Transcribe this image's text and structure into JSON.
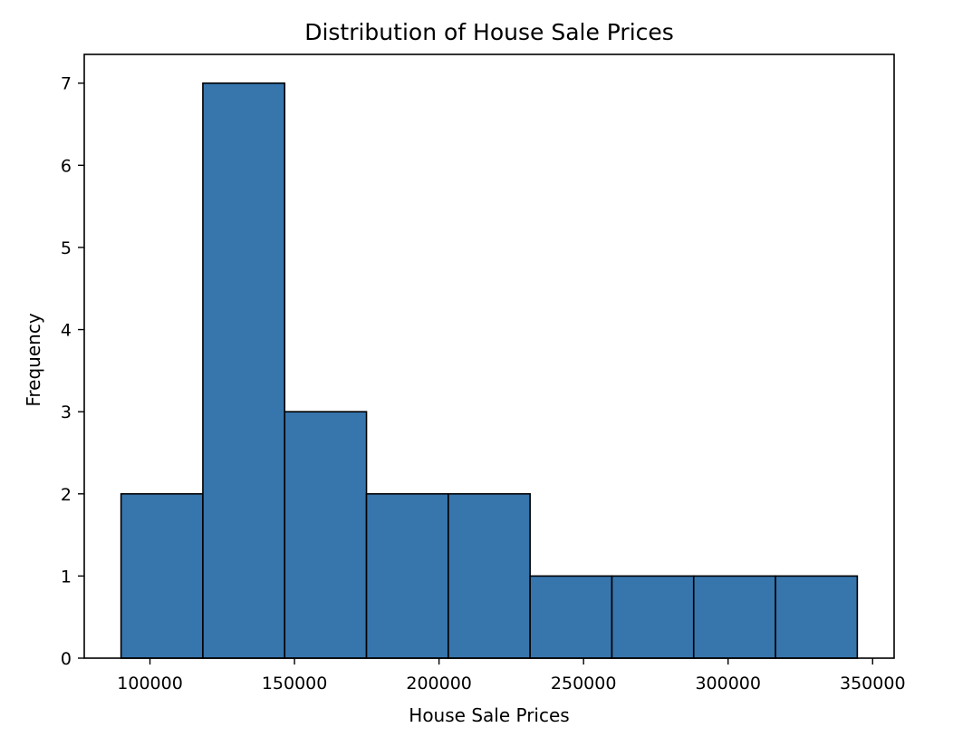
{
  "chart_data": {
    "type": "histogram",
    "title": "Distribution of House Sale Prices",
    "xlabel": "House Sale Prices",
    "ylabel": "Frequency",
    "bin_edges": [
      90000,
      118300,
      146600,
      174900,
      203200,
      231500,
      259800,
      288100,
      316400,
      344700
    ],
    "values": [
      2,
      7,
      3,
      2,
      2,
      1,
      1,
      1,
      1
    ],
    "xlim": [
      77265,
      357435
    ],
    "ylim": [
      0,
      7.35
    ],
    "xticks": [
      100000,
      150000,
      200000,
      250000,
      300000,
      350000
    ],
    "xtick_labels": [
      "100000",
      "150000",
      "200000",
      "250000",
      "300000",
      "350000"
    ],
    "yticks": [
      0,
      1,
      2,
      3,
      4,
      5,
      6,
      7
    ],
    "ytick_labels": [
      "0",
      "1",
      "2",
      "3",
      "4",
      "5",
      "6",
      "7"
    ],
    "bar_color": "#3775ad",
    "edge_color": "#000000",
    "grid": false,
    "legend": "none"
  }
}
